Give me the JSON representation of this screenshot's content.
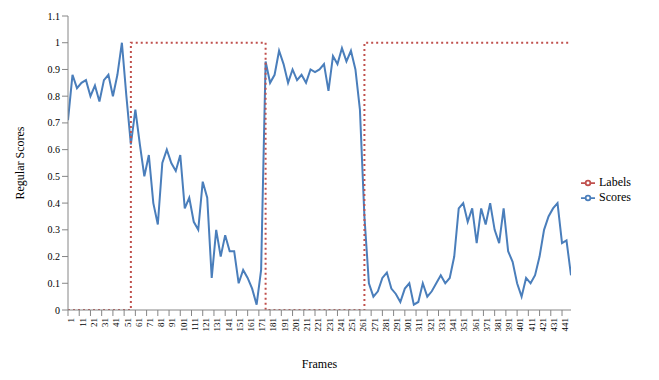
{
  "chart_data": {
    "type": "line",
    "x_label": "Frames",
    "y_label": "Regular Scores",
    "x": [
      1,
      5,
      9,
      13,
      17,
      21,
      25,
      29,
      33,
      37,
      41,
      45,
      49,
      53,
      57,
      61,
      65,
      69,
      73,
      77,
      81,
      85,
      89,
      93,
      97,
      101,
      105,
      109,
      113,
      117,
      121,
      125,
      129,
      133,
      137,
      141,
      145,
      149,
      153,
      157,
      161,
      165,
      169,
      173,
      177,
      181,
      185,
      189,
      193,
      197,
      201,
      205,
      209,
      213,
      217,
      221,
      225,
      229,
      233,
      237,
      241,
      245,
      249,
      253,
      257,
      261,
      265,
      269,
      273,
      277,
      281,
      285,
      289,
      293,
      297,
      301,
      305,
      309,
      313,
      317,
      321,
      325,
      329,
      333,
      337,
      341,
      345,
      349,
      353,
      357,
      361,
      365,
      369,
      373,
      377,
      381,
      385,
      389,
      393,
      397,
      401,
      405,
      409,
      413,
      417,
      421,
      425,
      429,
      433,
      437,
      441,
      445,
      449
    ],
    "series": [
      {
        "name": "Scores",
        "color": "#4a7ebb",
        "type": "line",
        "line_style": "solid",
        "values": [
          0.71,
          0.88,
          0.83,
          0.85,
          0.86,
          0.8,
          0.84,
          0.78,
          0.86,
          0.88,
          0.8,
          0.88,
          1.0,
          0.8,
          0.62,
          0.75,
          0.62,
          0.5,
          0.58,
          0.4,
          0.32,
          0.55,
          0.6,
          0.55,
          0.52,
          0.58,
          0.38,
          0.42,
          0.33,
          0.3,
          0.48,
          0.42,
          0.12,
          0.3,
          0.2,
          0.28,
          0.22,
          0.22,
          0.1,
          0.15,
          0.12,
          0.08,
          0.02,
          0.15,
          0.93,
          0.85,
          0.88,
          0.97,
          0.92,
          0.85,
          0.9,
          0.86,
          0.88,
          0.85,
          0.9,
          0.89,
          0.9,
          0.92,
          0.82,
          0.95,
          0.92,
          0.98,
          0.93,
          0.97,
          0.9,
          0.75,
          0.35,
          0.1,
          0.05,
          0.07,
          0.12,
          0.14,
          0.08,
          0.06,
          0.03,
          0.08,
          0.1,
          0.02,
          0.03,
          0.1,
          0.05,
          0.07,
          0.1,
          0.13,
          0.1,
          0.12,
          0.2,
          0.38,
          0.4,
          0.33,
          0.38,
          0.25,
          0.38,
          0.32,
          0.4,
          0.3,
          0.25,
          0.38,
          0.22,
          0.18,
          0.1,
          0.05,
          0.12,
          0.1,
          0.13,
          0.2,
          0.3,
          0.35,
          0.38,
          0.4,
          0.25,
          0.26,
          0.13
        ]
      },
      {
        "name": "Labels",
        "color": "#c0504d",
        "type": "step",
        "line_style": "dotted",
        "values": [
          0,
          0,
          0,
          0,
          0,
          0,
          0,
          0,
          0,
          0,
          0,
          0,
          0,
          0,
          1,
          1,
          1,
          1,
          1,
          1,
          1,
          1,
          1,
          1,
          1,
          1,
          1,
          1,
          1,
          1,
          1,
          1,
          1,
          1,
          1,
          1,
          1,
          1,
          1,
          1,
          1,
          1,
          1,
          1,
          0,
          0,
          0,
          0,
          0,
          0,
          0,
          0,
          0,
          0,
          0,
          0,
          0,
          0,
          0,
          0,
          0,
          0,
          0,
          0,
          0,
          0,
          1,
          1,
          1,
          1,
          1,
          1,
          1,
          1,
          1,
          1,
          1,
          1,
          1,
          1,
          1,
          1,
          1,
          1,
          1,
          1,
          1,
          1,
          1,
          1,
          1,
          1,
          1,
          1,
          1,
          1,
          1,
          1,
          1,
          1,
          1,
          1,
          1,
          1,
          1,
          1,
          1,
          1,
          1,
          1,
          1,
          1,
          1
        ]
      }
    ],
    "xlim": [
      1,
      449
    ],
    "xticks": [
      1,
      11,
      21,
      31,
      41,
      51,
      61,
      71,
      81,
      91,
      101,
      111,
      121,
      131,
      141,
      151,
      161,
      171,
      181,
      191,
      201,
      211,
      221,
      231,
      241,
      251,
      261,
      271,
      281,
      291,
      301,
      311,
      321,
      331,
      341,
      351,
      361,
      371,
      381,
      391,
      401,
      411,
      421,
      431,
      441
    ],
    "ylim": [
      0,
      1.1
    ],
    "yticks": [
      0,
      0.1,
      0.2,
      0.3,
      0.4,
      0.5,
      0.6,
      0.7,
      0.8,
      0.9,
      1,
      1.1
    ],
    "grid": false,
    "legend": "right"
  }
}
